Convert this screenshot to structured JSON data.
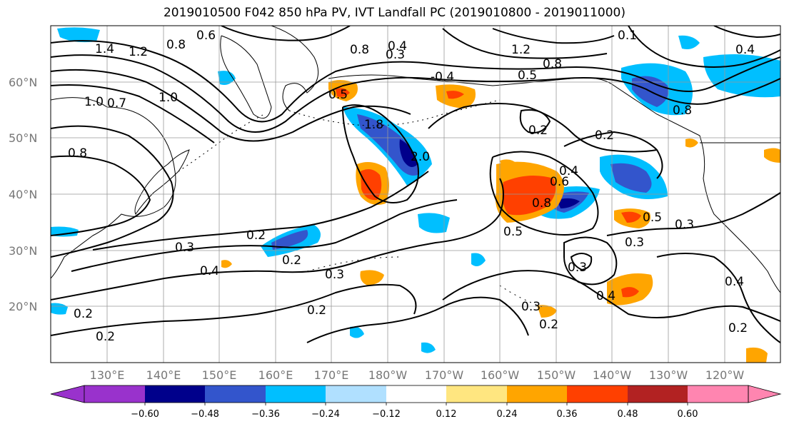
{
  "title": "2019010500 F042 850 hPa PV, IVT Landfall PC (2019010800 - 2019011000)",
  "map": {
    "lat_labels": [
      "60°N",
      "50°N",
      "40°N",
      "30°N",
      "20°N"
    ],
    "lon_labels": [
      "130°E",
      "140°E",
      "150°E",
      "160°E",
      "170°E",
      "180°W",
      "170°W",
      "160°W",
      "150°W",
      "140°W",
      "130°W",
      "120°W"
    ],
    "contour_labels": [
      "1.4",
      "1.2",
      "1.0",
      "0.7",
      "0.8",
      "0.6",
      "0.4",
      "0.3",
      "0.8",
      "1.2",
      "0.8",
      "0.5",
      "-0.4",
      "0.5",
      "1.0",
      "0.8",
      "0.2",
      "0.2",
      "0.4",
      "0.6",
      "0.8",
      "0.5",
      "0.3",
      "0.5",
      "0.3",
      "0.4",
      "0.3",
      "0.2",
      "0.2",
      "0.3",
      "0.2",
      "0.4",
      "0.3",
      "0.2",
      "0.3",
      "0.2",
      "0.2",
      "0.4",
      "0.2",
      "1.8",
      "2.0",
      "0.8",
      "0.4",
      "0.1"
    ]
  },
  "colorbar": {
    "ticks": [
      "−0.60",
      "−0.48",
      "−0.36",
      "−0.24",
      "−0.12",
      "0.12",
      "0.24",
      "0.36",
      "0.48",
      "0.60"
    ],
    "colors": [
      "#9932cc",
      "#00008b",
      "#3355cc",
      "#00bfff",
      "#b0e0ff",
      "#ffffff",
      "#ffe680",
      "#ffa500",
      "#ff4000",
      "#b22222",
      "#ff85b0"
    ]
  }
}
